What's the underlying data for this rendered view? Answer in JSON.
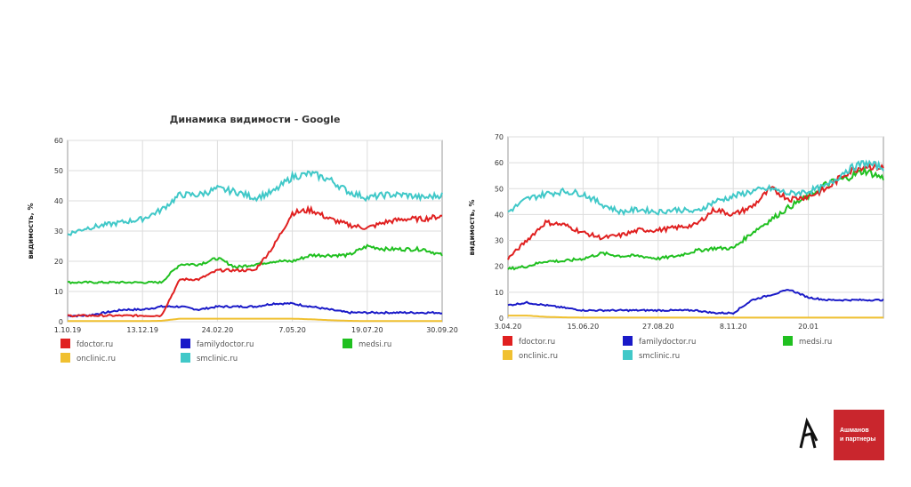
{
  "chart_data": [
    {
      "type": "line",
      "title": "Динамика видимости - Google",
      "ylabel": "видимость, %",
      "xlabel": "",
      "ylim": [
        0,
        60
      ],
      "yticks": [
        0,
        10,
        20,
        30,
        40,
        50,
        60
      ],
      "xticks": [
        "1.10.19",
        "13.12.19",
        "24.02.20",
        "7.05.20",
        "19.07.20",
        "30.09.20"
      ],
      "grid": true,
      "legend": "bottom",
      "series": [
        {
          "name": "fdoctor.ru",
          "color": "#e02020",
          "values": [
            2,
            2,
            2,
            2,
            2,
            2,
            14,
            14,
            17,
            17,
            17,
            25,
            36,
            37,
            34,
            32,
            31,
            33,
            34,
            34,
            35
          ]
        },
        {
          "name": "familydoctor.ru",
          "color": "#1a1ac8",
          "values": [
            2,
            2,
            3,
            4,
            4,
            5,
            5,
            4,
            5,
            5,
            5,
            6,
            6,
            5,
            4,
            3,
            3,
            3,
            3,
            3,
            3
          ]
        },
        {
          "name": "medsi.ru",
          "color": "#20c020",
          "values": [
            13,
            13,
            13,
            13,
            13,
            13,
            19,
            19,
            21,
            18,
            19,
            20,
            20,
            22,
            22,
            22,
            25,
            24,
            24,
            24,
            22
          ]
        },
        {
          "name": "onclinic.ru",
          "color": "#f0c030",
          "values": [
            0.2,
            0.2,
            0.2,
            0.2,
            0.2,
            0.3,
            1,
            1,
            1,
            1,
            1,
            1,
            1,
            0.8,
            0.5,
            0.3,
            0.2,
            0.2,
            0.2,
            0.2,
            0.2
          ]
        },
        {
          "name": "smclinic.ru",
          "color": "#40c8c8",
          "values": [
            29,
            31,
            32,
            33,
            34,
            37,
            42,
            42,
            44,
            43,
            41,
            43,
            48,
            49,
            47,
            43,
            41,
            42,
            42,
            41,
            42
          ]
        }
      ]
    },
    {
      "type": "line",
      "title": "",
      "ylabel": "видимость, %",
      "xlabel": "",
      "ylim": [
        0,
        70
      ],
      "yticks": [
        0,
        10,
        20,
        30,
        40,
        50,
        60,
        70
      ],
      "xticks": [
        "3.04.20",
        "15.06.20",
        "27.08.20",
        "8.11.20",
        "20.01"
      ],
      "grid": true,
      "legend": "bottom",
      "series": [
        {
          "name": "fdoctor.ru",
          "color": "#e02020",
          "values": [
            23,
            30,
            37,
            36,
            33,
            31,
            32,
            34,
            34,
            35,
            36,
            42,
            40,
            43,
            50,
            46,
            47,
            50,
            56,
            59,
            58
          ]
        },
        {
          "name": "familydoctor.ru",
          "color": "#1a1ac8",
          "values": [
            5,
            6,
            5,
            4,
            3,
            3,
            3,
            3,
            3,
            3,
            3,
            2,
            2,
            7,
            9,
            11,
            8,
            7,
            7,
            7,
            7
          ]
        },
        {
          "name": "medsi.ru",
          "color": "#20c020",
          "values": [
            19,
            20,
            22,
            22,
            23,
            25,
            24,
            24,
            23,
            24,
            26,
            27,
            27,
            33,
            38,
            43,
            47,
            52,
            54,
            57,
            54
          ]
        },
        {
          "name": "onclinic.ru",
          "color": "#f0c030",
          "values": [
            1,
            1,
            0.5,
            0.3,
            0.2,
            0.2,
            0.2,
            0.2,
            0.2,
            0.2,
            0.2,
            0.2,
            0.2,
            0.2,
            0.2,
            0.2,
            0.2,
            0.2,
            0.2,
            0.2,
            0.2
          ]
        },
        {
          "name": "smclinic.ru",
          "color": "#40c8c8",
          "values": [
            41,
            46,
            48,
            49,
            48,
            44,
            41,
            42,
            41,
            42,
            41,
            45,
            47,
            49,
            50,
            48,
            49,
            51,
            57,
            60,
            58
          ]
        }
      ]
    }
  ],
  "logo": {
    "line1": "Ашманов",
    "line2": "и партнеры"
  }
}
